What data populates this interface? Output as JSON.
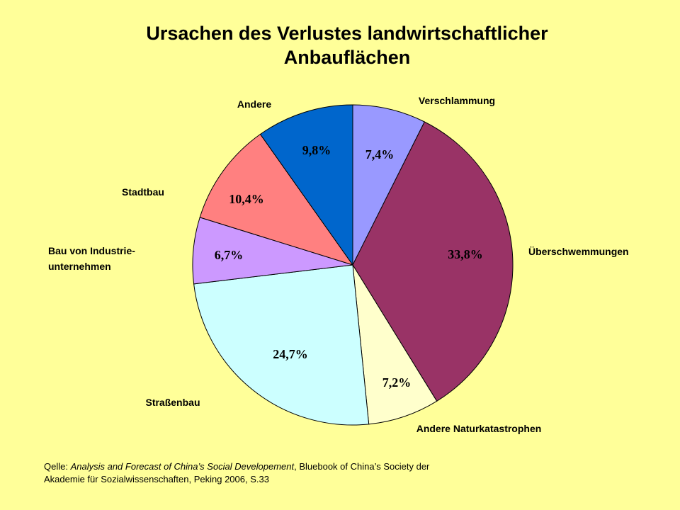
{
  "chart_data": {
    "type": "pie",
    "title": "Ursachen des Verlustes landwirtschaftlicher Anbauflächen",
    "title_lines": [
      "Ursachen des Verlustes landwirtschaftlicher",
      "Anbauflächen"
    ],
    "start_angle_deg": 0,
    "direction": "clockwise",
    "slices": [
      {
        "label": "Verschlammung",
        "label_lines": [
          "Verschlammung"
        ],
        "value": 7.4,
        "value_label": "7,4%",
        "color": "#9999FF"
      },
      {
        "label": "Überschwemmungen",
        "label_lines": [
          "Überschwemmungen"
        ],
        "value": 33.8,
        "value_label": "33,8%",
        "color": "#993366"
      },
      {
        "label": "Andere Naturkatastrophen",
        "label_lines": [
          "Andere Naturkatastrophen"
        ],
        "value": 7.2,
        "value_label": "7,2%",
        "color": "#FFFFCC"
      },
      {
        "label": "Straßenbau",
        "label_lines": [
          "Straßenbau"
        ],
        "value": 24.7,
        "value_label": "24,7%",
        "color": "#CCFFFF"
      },
      {
        "label": "Bau von Industrie-unternehmen",
        "label_lines": [
          "Bau von Industrie-",
          "unternehmen"
        ],
        "value": 6.7,
        "value_label": "6,7%",
        "color": "#CC99FF"
      },
      {
        "label": "Stadtbau",
        "label_lines": [
          "Stadtbau"
        ],
        "value": 10.4,
        "value_label": "10,4%",
        "color": "#FF8080"
      },
      {
        "label": "Andere",
        "label_lines": [
          "Andere"
        ],
        "value": 9.8,
        "value_label": "9,8%",
        "color": "#0066CC"
      }
    ],
    "legend": "none"
  },
  "source": {
    "prefix": "Qelle: ",
    "work": "Analysis and Forecast of China’s Social Developement",
    "rest": ", Bluebook of China’s Society der",
    "line2": "Akademie für Sozialwissenschaften, Peking 2006, S.33"
  }
}
